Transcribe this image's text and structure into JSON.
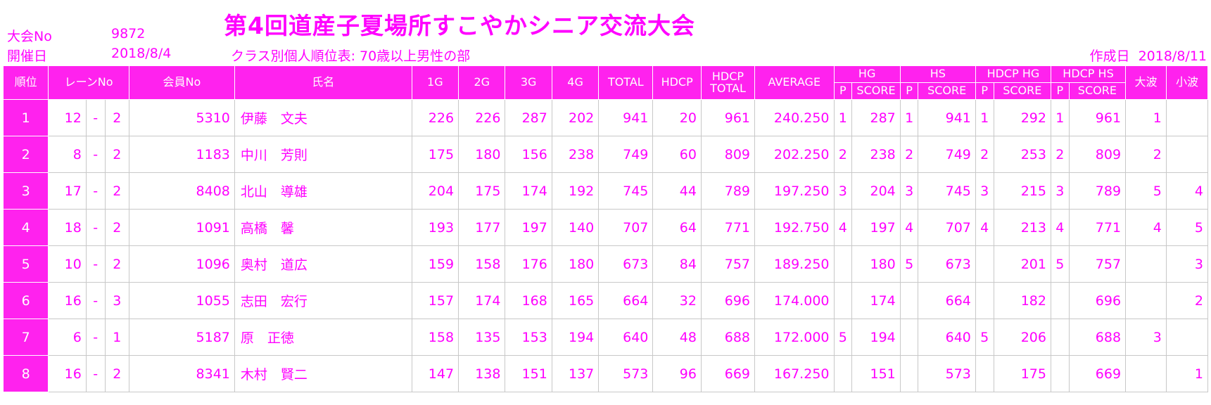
{
  "title": "第4回道産子夏場所すこやかシニア交流大会",
  "meta": {
    "tournament_no_label": "大会No",
    "tournament_no": "9872",
    "date_label": "開催日",
    "date": "2018/8/4",
    "class_label": "クラス別個人順位表: 70歳以上男性の部",
    "created_label": "作成日",
    "created_date": "2018/8/11"
  },
  "headers": {
    "rank": "順位",
    "lane": "レーンNo",
    "member": "会員No",
    "name": "氏名",
    "g1": "1G",
    "g2": "2G",
    "g3": "3G",
    "g4": "4G",
    "total": "TOTAL",
    "hdcp": "HDCP",
    "hdcp_total_1": "HDCP",
    "hdcp_total_2": "TOTAL",
    "average": "AVERAGE",
    "hg": "HG",
    "hs": "HS",
    "hdcp_hg": "HDCP HG",
    "hdcp_hs": "HDCP HS",
    "big_wave": "大波",
    "small_wave": "小波",
    "p": "P",
    "score": "SCORE"
  },
  "rows": [
    {
      "rank": "1",
      "lane": "12",
      "dash": "-",
      "lane_sub": "2",
      "member": "5310",
      "name": "伊藤　文夫",
      "g1": "226",
      "g2": "226",
      "g3": "287",
      "g4": "202",
      "total": "941",
      "hdcp": "20",
      "hdcp_total": "961",
      "average": "240.250",
      "hg_p": "1",
      "hg_score": "287",
      "hs_p": "1",
      "hs_score": "941",
      "hhg_p": "1",
      "hhg_score": "292",
      "hhs_p": "1",
      "hhs_score": "961",
      "big": "1",
      "small": ""
    },
    {
      "rank": "2",
      "lane": "8",
      "dash": "-",
      "lane_sub": "2",
      "member": "1183",
      "name": "中川　芳則",
      "g1": "175",
      "g2": "180",
      "g3": "156",
      "g4": "238",
      "total": "749",
      "hdcp": "60",
      "hdcp_total": "809",
      "average": "202.250",
      "hg_p": "2",
      "hg_score": "238",
      "hs_p": "2",
      "hs_score": "749",
      "hhg_p": "2",
      "hhg_score": "253",
      "hhs_p": "2",
      "hhs_score": "809",
      "big": "2",
      "small": ""
    },
    {
      "rank": "3",
      "lane": "17",
      "dash": "-",
      "lane_sub": "2",
      "member": "8408",
      "name": "北山　導雄",
      "g1": "204",
      "g2": "175",
      "g3": "174",
      "g4": "192",
      "total": "745",
      "hdcp": "44",
      "hdcp_total": "789",
      "average": "197.250",
      "hg_p": "3",
      "hg_score": "204",
      "hs_p": "3",
      "hs_score": "745",
      "hhg_p": "3",
      "hhg_score": "215",
      "hhs_p": "3",
      "hhs_score": "789",
      "big": "5",
      "small": "4"
    },
    {
      "rank": "4",
      "lane": "18",
      "dash": "-",
      "lane_sub": "2",
      "member": "1091",
      "name": "高橋　馨",
      "g1": "193",
      "g2": "177",
      "g3": "197",
      "g4": "140",
      "total": "707",
      "hdcp": "64",
      "hdcp_total": "771",
      "average": "192.750",
      "hg_p": "4",
      "hg_score": "197",
      "hs_p": "4",
      "hs_score": "707",
      "hhg_p": "4",
      "hhg_score": "213",
      "hhs_p": "4",
      "hhs_score": "771",
      "big": "4",
      "small": "5"
    },
    {
      "rank": "5",
      "lane": "10",
      "dash": "-",
      "lane_sub": "2",
      "member": "1096",
      "name": "奥村　道広",
      "g1": "159",
      "g2": "158",
      "g3": "176",
      "g4": "180",
      "total": "673",
      "hdcp": "84",
      "hdcp_total": "757",
      "average": "189.250",
      "hg_p": "",
      "hg_score": "180",
      "hs_p": "5",
      "hs_score": "673",
      "hhg_p": "",
      "hhg_score": "201",
      "hhs_p": "5",
      "hhs_score": "757",
      "big": "",
      "small": "3"
    },
    {
      "rank": "6",
      "lane": "16",
      "dash": "-",
      "lane_sub": "3",
      "member": "1055",
      "name": "志田　宏行",
      "g1": "157",
      "g2": "174",
      "g3": "168",
      "g4": "165",
      "total": "664",
      "hdcp": "32",
      "hdcp_total": "696",
      "average": "174.000",
      "hg_p": "",
      "hg_score": "174",
      "hs_p": "",
      "hs_score": "664",
      "hhg_p": "",
      "hhg_score": "182",
      "hhs_p": "",
      "hhs_score": "696",
      "big": "",
      "small": "2"
    },
    {
      "rank": "7",
      "lane": "6",
      "dash": "-",
      "lane_sub": "1",
      "member": "5187",
      "name": "原　正徳",
      "g1": "158",
      "g2": "135",
      "g3": "153",
      "g4": "194",
      "total": "640",
      "hdcp": "48",
      "hdcp_total": "688",
      "average": "172.000",
      "hg_p": "5",
      "hg_score": "194",
      "hs_p": "",
      "hs_score": "640",
      "hhg_p": "5",
      "hhg_score": "206",
      "hhs_p": "",
      "hhs_score": "688",
      "big": "3",
      "small": ""
    },
    {
      "rank": "8",
      "lane": "16",
      "dash": "-",
      "lane_sub": "2",
      "member": "8341",
      "name": "木村　賢二",
      "g1": "147",
      "g2": "138",
      "g3": "151",
      "g4": "137",
      "total": "573",
      "hdcp": "96",
      "hdcp_total": "669",
      "average": "167.250",
      "hg_p": "",
      "hg_score": "151",
      "hs_p": "",
      "hs_score": "573",
      "hhg_p": "",
      "hhg_score": "175",
      "hhs_p": "",
      "hhs_score": "669",
      "big": "",
      "small": "1"
    }
  ]
}
